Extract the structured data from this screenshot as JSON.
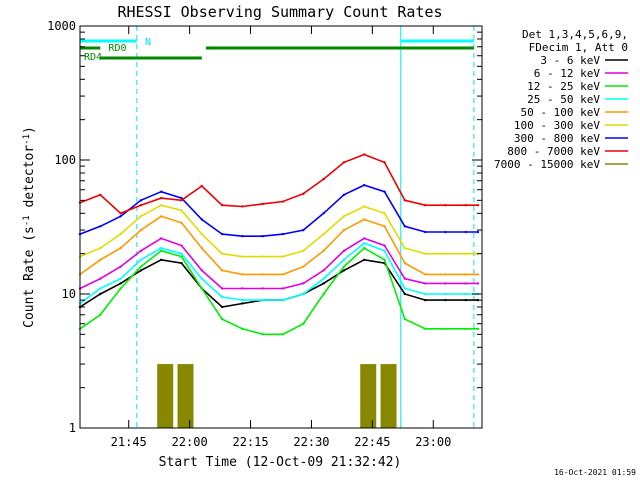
{
  "chart_data": {
    "type": "line",
    "title": "RHESSI Observing Summary Count Rates",
    "xlabel": "Start Time (12-Oct-09 21:32:42)",
    "ylabel_prefix": "Count Rate (s",
    "ylabel_sup1": "-1",
    "ylabel_mid": " detector",
    "ylabel_sup2": "-1",
    "ylabel_suffix": ")",
    "y_scale": "log",
    "ylim": [
      1,
      1000
    ],
    "xlim": [
      "21:33",
      "23:12"
    ],
    "x_ticks": [
      "21:45",
      "22:00",
      "22:15",
      "22:30",
      "22:45",
      "23:00"
    ],
    "y_ticks": [
      "1",
      "10",
      "100",
      "1000"
    ],
    "x": [
      "21:33",
      "21:38",
      "21:43",
      "21:48",
      "21:53",
      "21:58",
      "22:03",
      "22:08",
      "22:13",
      "22:18",
      "22:23",
      "22:28",
      "22:33",
      "22:38",
      "22:43",
      "22:48",
      "22:53",
      "22:58",
      "23:03",
      "23:08",
      "23:11"
    ],
    "series": [
      {
        "name": "3 - 6 keV",
        "color": "#000000",
        "values": [
          8,
          10,
          12,
          15,
          18,
          17,
          11,
          8,
          8.5,
          9,
          9,
          10,
          12,
          15,
          18,
          17,
          10,
          9,
          9,
          9,
          9
        ]
      },
      {
        "name": "6 - 12 keV",
        "color": "#e000e0",
        "values": [
          11,
          13,
          16,
          21,
          26,
          23,
          15,
          11,
          11,
          11,
          11,
          12,
          15,
          21,
          26,
          23,
          13,
          12,
          12,
          12,
          12
        ]
      },
      {
        "name": "12 - 25 keV",
        "color": "#00ee00",
        "values": [
          5.5,
          7,
          11,
          16,
          21,
          19,
          11,
          6.5,
          5.5,
          5,
          5,
          6,
          10,
          16,
          22,
          18,
          6.5,
          5.5,
          5.5,
          5.5,
          5.5
        ]
      },
      {
        "name": "25 - 50 keV",
        "color": "#00ffff",
        "values": [
          8.5,
          11,
          13,
          18,
          22,
          20,
          13,
          9.5,
          9,
          9,
          9,
          10,
          13,
          18,
          24,
          21,
          11,
          10,
          10,
          10,
          10
        ]
      },
      {
        "name": "50 - 100 keV",
        "color": "#ff9900",
        "values": [
          14,
          18,
          22,
          30,
          38,
          34,
          22,
          15,
          14,
          14,
          14,
          16,
          21,
          30,
          36,
          32,
          17,
          14,
          14,
          14,
          14
        ]
      },
      {
        "name": "100 - 300 keV",
        "color": "#dddd00",
        "values": [
          19,
          22,
          28,
          38,
          46,
          42,
          28,
          20,
          19,
          19,
          19,
          21,
          28,
          38,
          45,
          40,
          22,
          20,
          20,
          20,
          20
        ]
      },
      {
        "name": "300 - 800 keV",
        "color": "#0000ff",
        "values": [
          28,
          32,
          38,
          50,
          58,
          52,
          36,
          28,
          27,
          27,
          28,
          30,
          40,
          55,
          65,
          58,
          32,
          29,
          29,
          29,
          29
        ]
      },
      {
        "name": "800 - 7000 keV",
        "color": "#ee0000",
        "values": [
          48,
          55,
          40,
          46,
          52,
          50,
          64,
          46,
          45,
          47,
          49,
          56,
          72,
          96,
          110,
          96,
          50,
          46,
          46,
          46,
          46
        ]
      },
      {
        "name": "7000 - 15000 keV",
        "color": "#888800",
        "values": [
          null,
          null,
          null,
          null,
          2,
          2,
          null,
          null,
          null,
          null,
          null,
          null,
          null,
          null,
          2,
          2,
          null,
          null,
          null,
          null,
          null
        ]
      }
    ],
    "legend_header_line1": "Det 1,3,4,5,6,9,",
    "legend_header_line2": "FDecim 1, Att 0",
    "legend_position": "right",
    "annotations": {
      "n_label": "N",
      "rd0_label": "RD0",
      "rd4_label": "RD4"
    },
    "footer_date": "16-Oct-2021 01:59"
  }
}
